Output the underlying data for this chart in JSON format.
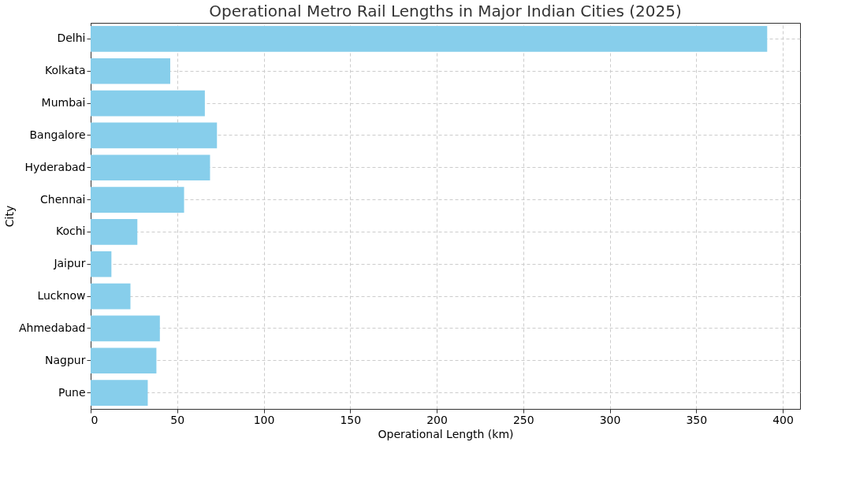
{
  "chart_data": {
    "type": "bar",
    "orientation": "horizontal",
    "title": "Operational Metro Rail Lengths in Major Indian Cities (2025)",
    "xlabel": "Operational Length (km)",
    "ylabel": "City",
    "categories": [
      "Delhi",
      "Kolkata",
      "Mumbai",
      "Bangalore",
      "Hyderabad",
      "Chennai",
      "Kochi",
      "Jaipur",
      "Lucknow",
      "Ahmedabad",
      "Nagpur",
      "Pune"
    ],
    "values": [
      391,
      46,
      66,
      73,
      69,
      54,
      27,
      12,
      23,
      40,
      38,
      33
    ],
    "color": "#87ceeb",
    "xlim": [
      0,
      410
    ],
    "xticks": [
      0,
      50,
      100,
      150,
      200,
      250,
      300,
      350,
      400
    ],
    "grid": true,
    "line_style": "dashed"
  }
}
